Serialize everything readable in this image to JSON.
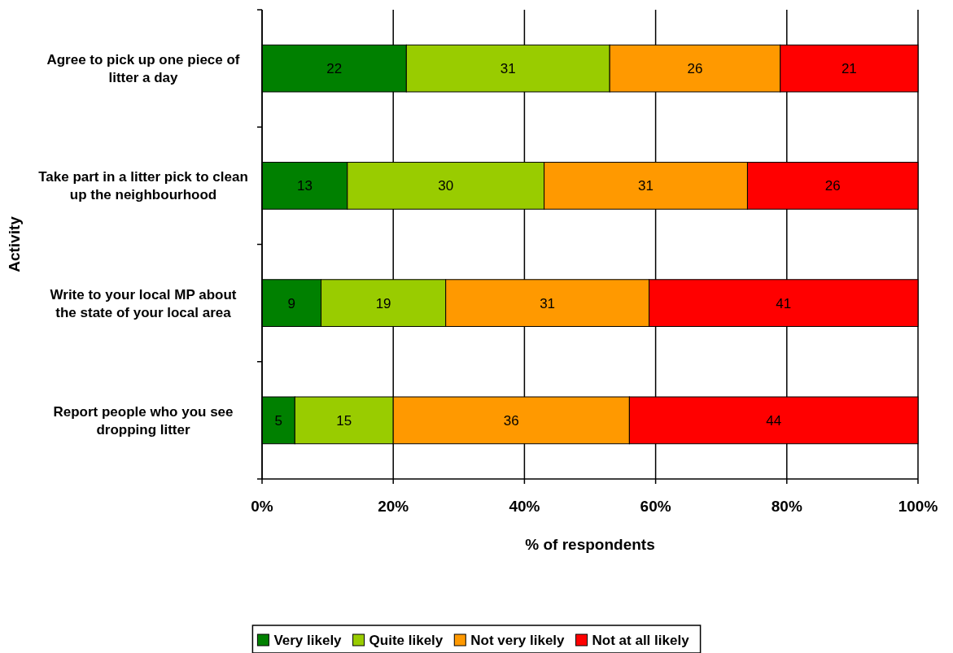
{
  "chart_data": {
    "type": "bar",
    "orientation": "horizontal",
    "stacked": true,
    "ylabel": "Activity",
    "xlabel": "% of respondents",
    "categories": [
      "Agree to pick up one piece of litter a day",
      "Take part in a litter pick to clean up the neighbourhood",
      "Write to your local MP about the state of your local area",
      "Report people who you see dropping litter"
    ],
    "series": [
      {
        "name": "Very likely",
        "color": "#008000",
        "values": [
          22,
          13,
          9,
          5
        ]
      },
      {
        "name": "Quite likely",
        "color": "#99cc00",
        "values": [
          31,
          30,
          19,
          15
        ]
      },
      {
        "name": "Not very likely",
        "color": "#ff9900",
        "values": [
          26,
          31,
          31,
          36
        ]
      },
      {
        "name": "Not at all likely",
        "color": "#ff0000",
        "values": [
          21,
          26,
          41,
          44
        ]
      }
    ],
    "xlim": [
      0,
      100
    ],
    "xticks": [
      {
        "value": 0,
        "label": "0%"
      },
      {
        "value": 20,
        "label": "20%"
      },
      {
        "value": 40,
        "label": "40%"
      },
      {
        "value": 60,
        "label": "60%"
      },
      {
        "value": 80,
        "label": "80%"
      },
      {
        "value": 100,
        "label": "100%"
      }
    ],
    "grid": "x",
    "data_labels": true,
    "legend": "bottom"
  }
}
